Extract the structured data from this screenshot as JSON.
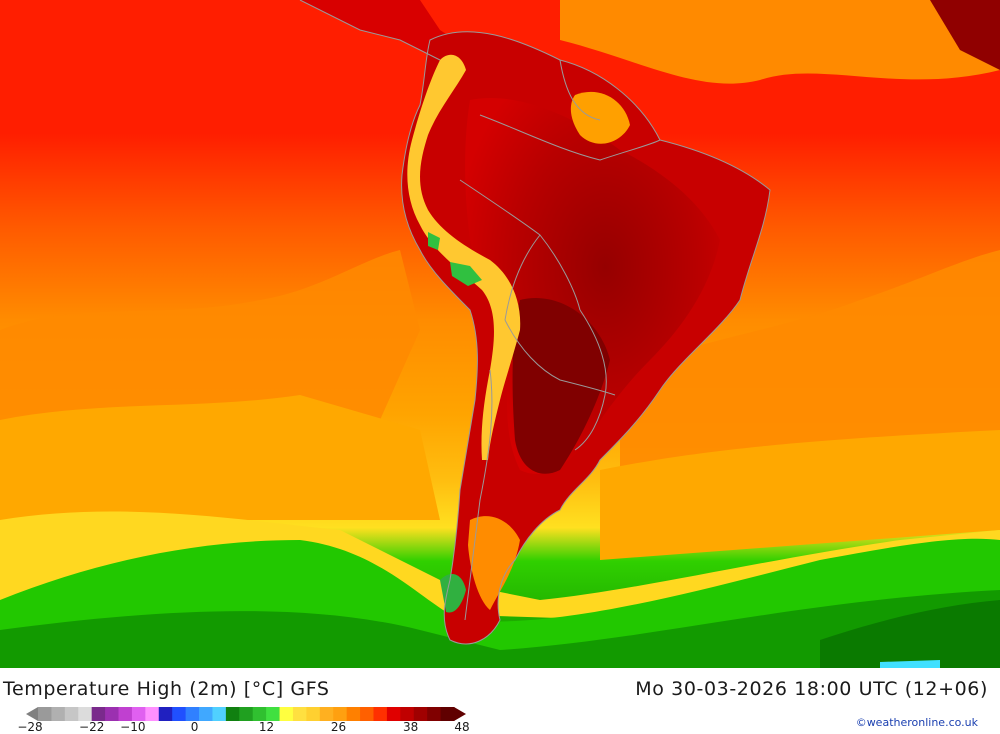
{
  "map": {
    "region": "South America",
    "field": "2m daily maximum temperature",
    "background_sea_colors": [
      "#ff1a00",
      "#ff7a00",
      "#ffa500",
      "#ffe020",
      "#22d200",
      "#118a00"
    ],
    "land_colors": [
      "#a00000",
      "#c80000",
      "#ff3000",
      "#ffb400",
      "#ffe040",
      "#32c832"
    ],
    "border_color": "#9a9a9a"
  },
  "footer": {
    "title": "Temperature High (2m) [°C] GFS",
    "datetime": "Mo 30-03-2026 18:00 UTC (12+06)",
    "credit": "©weatheronline.co.uk"
  },
  "legend": {
    "labels": [
      "-28",
      "-22",
      "-10",
      "0",
      "12",
      "26",
      "38",
      "48"
    ],
    "label_positions": [
      0,
      0.1429,
      0.2381,
      0.381,
      0.5476,
      0.7143,
      0.881,
      1.0
    ],
    "colors": [
      "#9a9a9a",
      "#b0b0b0",
      "#c6c6c6",
      "#dcdcdc",
      "#7a2a8c",
      "#9b30b0",
      "#c040d0",
      "#e060f0",
      "#ff90ff",
      "#2020c0",
      "#2050ff",
      "#3080ff",
      "#40a8ff",
      "#50d0ff",
      "#108010",
      "#20a020",
      "#30c030",
      "#40e040",
      "#ffff40",
      "#ffe040",
      "#ffd030",
      "#ffb020",
      "#ffa010",
      "#ff8000",
      "#ff6000",
      "#ff3000",
      "#e00000",
      "#c00000",
      "#a00000",
      "#800000",
      "#600000"
    ]
  }
}
